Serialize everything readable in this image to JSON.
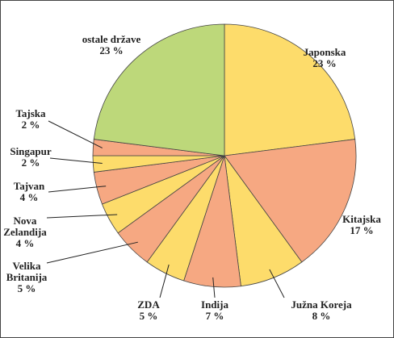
{
  "chart_data": {
    "type": "pie",
    "categories": [
      "Japonska",
      "Kitajska",
      "Južna Koreja",
      "Indija",
      "ZDA",
      "Velika Britanija",
      "Nova Zelandija",
      "Tajvan",
      "Singapur",
      "Tajska",
      "ostale države"
    ],
    "values": [
      23,
      17,
      8,
      7,
      5,
      5,
      4,
      4,
      2,
      2,
      23
    ],
    "value_labels": [
      "23 %",
      "17 %",
      "8 %",
      "7 %",
      "5 %",
      "5 %",
      "4 %",
      "4 %",
      "2 %",
      "2 %",
      "23 %"
    ],
    "colors": [
      "#fddc6b",
      "#f6a882",
      "#fddc6b",
      "#f6a882",
      "#fddc6b",
      "#f6a882",
      "#fddc6b",
      "#f6a882",
      "#fddc6b",
      "#f6a882",
      "#bdd87a"
    ]
  }
}
